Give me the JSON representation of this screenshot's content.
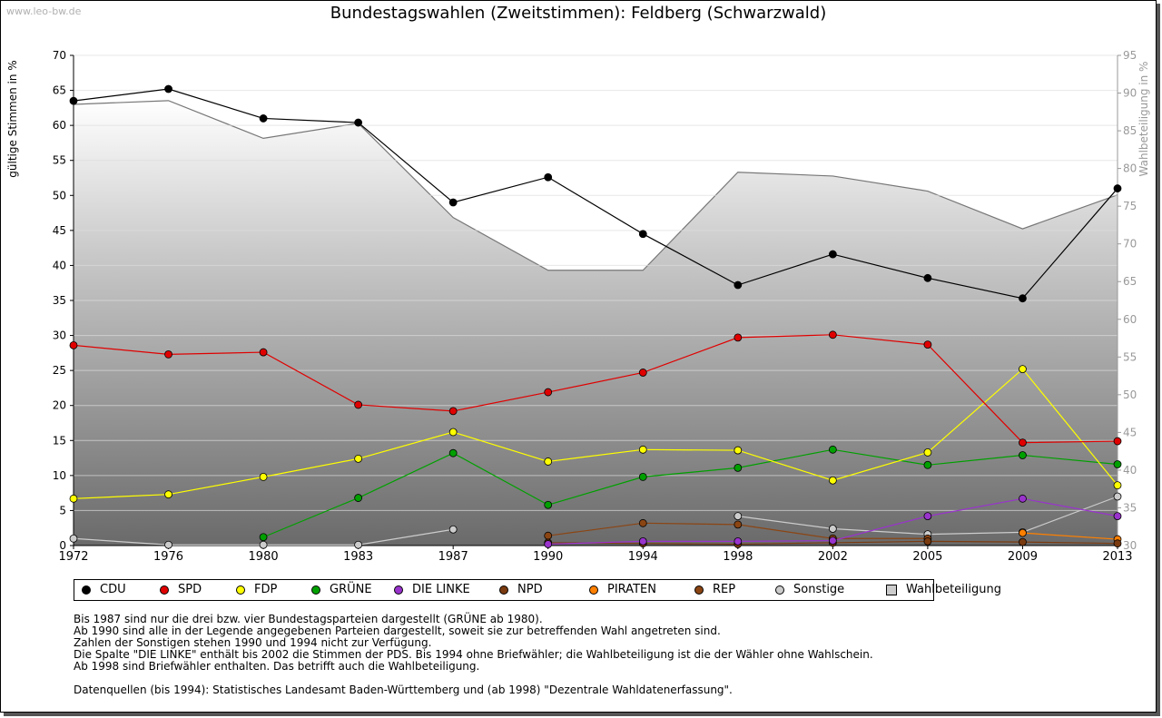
{
  "watermark": "www.leo-bw.de",
  "chart_data": {
    "type": "line",
    "title": "Bundestagswahlen (Zweitstimmen): Feldberg (Schwarzwald)",
    "ylabel": "gültige Stimmen in %",
    "y2label": "Wahlbeteiligung in %",
    "ylim": [
      0,
      70
    ],
    "y2lim": [
      30,
      95
    ],
    "yticks": [
      "0",
      "5",
      "10",
      "15",
      "20",
      "25",
      "30",
      "35",
      "40",
      "45",
      "50",
      "55",
      "60",
      "65",
      "70"
    ],
    "y2ticks": [
      "30",
      "35",
      "40",
      "45",
      "50",
      "55",
      "60",
      "65",
      "70",
      "75",
      "80",
      "85",
      "90",
      "95"
    ],
    "x": [
      "1972",
      "1976",
      "1980",
      "1983",
      "1987",
      "1990",
      "1994",
      "1998",
      "2002",
      "2005",
      "2009",
      "2013"
    ],
    "grid": true,
    "legend_position": "bottom",
    "series": [
      {
        "name": "CDU",
        "color": "#000000",
        "values": [
          63.5,
          65.2,
          61.0,
          60.4,
          49.0,
          52.6,
          44.5,
          37.2,
          41.6,
          38.2,
          35.3,
          51.0
        ]
      },
      {
        "name": "SPD",
        "color": "#e00000",
        "values": [
          28.6,
          27.3,
          27.6,
          20.1,
          19.2,
          21.9,
          24.7,
          29.7,
          30.1,
          28.7,
          14.7,
          14.9
        ]
      },
      {
        "name": "FDP",
        "color": "#ffff00",
        "values": [
          6.7,
          7.3,
          9.8,
          12.4,
          16.2,
          12.0,
          13.7,
          13.6,
          9.3,
          13.3,
          25.2,
          8.6
        ]
      },
      {
        "name": "GRÜNE",
        "color": "#00a000",
        "values": [
          null,
          null,
          1.2,
          6.8,
          13.2,
          5.8,
          9.8,
          11.1,
          13.7,
          11.5,
          12.9,
          11.6
        ]
      },
      {
        "name": "DIE LINKE",
        "color": "#9933cc",
        "values": [
          null,
          null,
          null,
          null,
          null,
          0.2,
          0.6,
          0.6,
          0.7,
          4.2,
          6.7,
          4.2
        ]
      },
      {
        "name": "NPD",
        "color": "#7a3b10",
        "values": [
          null,
          null,
          null,
          null,
          null,
          0.4,
          0.3,
          0.2,
          0.4,
          0.6,
          0.5,
          0.3
        ]
      },
      {
        "name": "PIRATEN",
        "color": "#ff8000",
        "values": [
          null,
          null,
          null,
          null,
          null,
          null,
          null,
          null,
          null,
          null,
          1.8,
          0.9
        ]
      },
      {
        "name": "REP",
        "color": "#8b4513",
        "values": [
          null,
          null,
          null,
          null,
          null,
          1.4,
          3.2,
          3.0,
          1.0,
          1.0,
          null,
          null
        ]
      },
      {
        "name": "Sonstige",
        "color": "#cccccc",
        "values": [
          1.0,
          0.1,
          0.1,
          0.1,
          2.3,
          null,
          null,
          4.2,
          2.4,
          1.6,
          1.9,
          7.0
        ]
      }
    ],
    "turnout": {
      "name": "Wahlbeteiligung",
      "color": "#cccccc",
      "values": [
        88.5,
        89.0,
        84.0,
        86.0,
        73.5,
        66.5,
        66.5,
        79.5,
        79.0,
        77.0,
        72.0,
        76.5
      ]
    }
  },
  "legend": [
    {
      "label": "CDU",
      "color": "#000000",
      "shape": "diamond"
    },
    {
      "label": "SPD",
      "color": "#e00000",
      "shape": "diamond"
    },
    {
      "label": "FDP",
      "color": "#ffff00",
      "shape": "diamond"
    },
    {
      "label": "GRÜNE",
      "color": "#00a000",
      "shape": "diamond"
    },
    {
      "label": "DIE LINKE",
      "color": "#9933cc",
      "shape": "diamond"
    },
    {
      "label": "NPD",
      "color": "#7a3b10",
      "shape": "diamond"
    },
    {
      "label": "PIRATEN",
      "color": "#ff8000",
      "shape": "diamond"
    },
    {
      "label": "REP",
      "color": "#8b4513",
      "shape": "diamond"
    },
    {
      "label": "Sonstige",
      "color": "#cccccc",
      "shape": "diamond"
    },
    {
      "label": "Wahlbeteiligung",
      "color": "#cccccc",
      "shape": "box"
    }
  ],
  "notes": [
    "Bis 1987 sind nur die drei bzw. vier Bundestagsparteien dargestellt (GRÜNE ab 1980).",
    "Ab 1990 sind alle in der Legende angegebenen Parteien dargestellt, soweit sie zur betreffenden Wahl angetreten sind.",
    "Zahlen der Sonstigen stehen 1990 und 1994 nicht zur Verfügung.",
    "Die Spalte \"DIE LINKE\" enthält bis 2002 die Stimmen der PDS. Bis 1994 ohne Briefwähler; die Wahlbeteiligung ist die der Wähler ohne Wahlschein.",
    "Ab 1998 sind Briefwähler enthalten. Das betrifft auch die Wahlbeteiligung.",
    "",
    "Datenquellen (bis 1994): Statistisches Landesamt Baden-Württemberg und (ab 1998) \"Dezentrale Wahldatenerfassung\"."
  ]
}
